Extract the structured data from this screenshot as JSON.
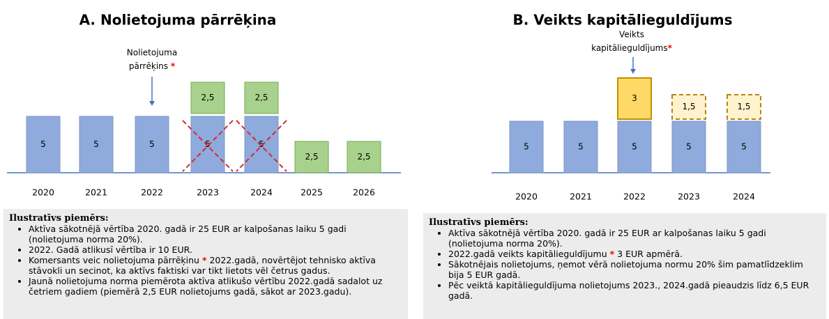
{
  "panels": [
    {
      "title": "A. Nolietojuma pārrēķina",
      "annotation": [
        "Nolietojuma",
        "pārrēķins",
        "*"
      ],
      "bars": [
        {
          "year": "2020",
          "segments": [
            {
              "label": "5",
              "style": "base"
            }
          ]
        },
        {
          "year": "2021",
          "segments": [
            {
              "label": "5",
              "style": "base"
            }
          ]
        },
        {
          "year": "2022",
          "segments": [
            {
              "label": "5",
              "style": "base"
            }
          ]
        },
        {
          "year": "2023",
          "crossed": true,
          "segments": [
            {
              "label": "5",
              "style": "base"
            },
            {
              "label": "2,5",
              "style": "green"
            }
          ]
        },
        {
          "year": "2024",
          "crossed": true,
          "segments": [
            {
              "label": "5",
              "style": "base"
            },
            {
              "label": "2,5",
              "style": "green"
            }
          ]
        },
        {
          "year": "2025",
          "segments": [
            {
              "label": "2,5",
              "style": "green"
            }
          ]
        },
        {
          "year": "2026",
          "segments": [
            {
              "label": "2,5",
              "style": "green"
            }
          ]
        }
      ],
      "note": {
        "heading": "Ilustratīvs piemērs:",
        "items": [
          [
            "Aktīva sākotnējā vērtība 2020. gadā ir 25 EUR ar kalpošanas laiku  5 gadi (nolietojuma norma 20%)."
          ],
          [
            "2022. Gadā atlikusī  vērtība ir 10 EUR."
          ],
          [
            "Komersants veic nolietojuma  pārrēķinu ",
            "*",
            " 2022.gadā, novērtējot tehnisko  aktīva stāvokli un secinot, ka aktīvs faktiski  var tikt lietots vēl četrus gadus."
          ],
          [
            "Jaunā nolietojuma norma piemērota aktīva atlikušo  vērtību 2022.gadā sadalot uz četriem gadiem (piemērā 2,5 EUR nolietojums  gadā, sākot ar 2023.gadu)."
          ]
        ]
      }
    },
    {
      "title": "B. Veikts kapitālieguldījums",
      "annotation": [
        "Veikts",
        "kapitālieguldījums",
        "*"
      ],
      "bars": [
        {
          "year": "2020",
          "segments": [
            {
              "label": "5",
              "style": "base"
            }
          ]
        },
        {
          "year": "2021",
          "segments": [
            {
              "label": "5",
              "style": "base"
            }
          ]
        },
        {
          "year": "2022",
          "segments": [
            {
              "label": "5",
              "style": "base"
            },
            {
              "label": "3",
              "style": "yellow"
            }
          ]
        },
        {
          "year": "2023",
          "segments": [
            {
              "label": "5",
              "style": "base"
            },
            {
              "label": "1,5",
              "style": "dashed"
            }
          ]
        },
        {
          "year": "2024",
          "segments": [
            {
              "label": "5",
              "style": "base"
            },
            {
              "label": "1,5",
              "style": "dashed"
            }
          ]
        }
      ],
      "note": {
        "heading": "Ilustratīvs piemērs:",
        "items": [
          [
            "Aktīva sākotnējā vērtība 2020. gadā ir 25 EUR ar kalpošanas laiku  5 gadi (nolietojuma norma 20%)."
          ],
          [
            "2022.gadā veikts kapitālieguldījumu  ",
            "*",
            " 3 EUR apmērā."
          ],
          [
            "Sākotnējais nolietojums, ņemot vērā nolietojuma normu 20% šim pamatlīdzeklim bija 5 EUR gadā."
          ],
          [
            "Pēc veiktā kapitālieguldījuma  nolietojums 2023., 2024.gadā pieaudzis līdz 6,5 EUR gadā."
          ]
        ]
      }
    }
  ]
}
